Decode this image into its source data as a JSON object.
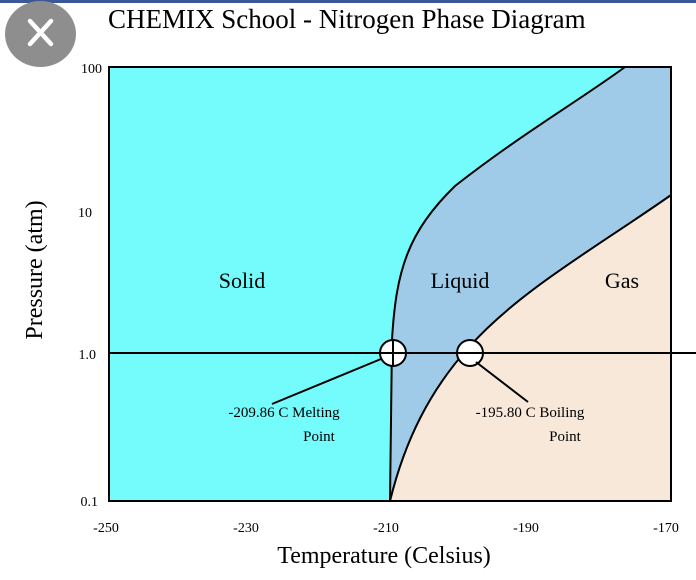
{
  "title": "CHEMIX School - Nitrogen Phase Diagram",
  "close_button": {
    "icon": "close-icon"
  },
  "colors": {
    "solid": "#74fbfb",
    "liquid": "#9fcbe8",
    "gas": "#f7e8d9",
    "line": "#000000"
  },
  "axes": {
    "x_label": "Temperature (Celsius)",
    "y_label": "Pressure (atm)",
    "x_ticks": [
      "-250",
      "-230",
      "-210",
      "-190",
      "-170"
    ],
    "y_ticks": [
      "100",
      "10",
      "1.0",
      "0.1"
    ],
    "y_scale": "log"
  },
  "regions": {
    "solid": "Solid",
    "liquid": "Liquid",
    "gas": "Gas"
  },
  "annotations": {
    "melting_value": "-209.86 C Melting",
    "melting_word": "Point",
    "boiling_value": "-195.80 C Boiling",
    "boiling_word": "Point"
  }
}
